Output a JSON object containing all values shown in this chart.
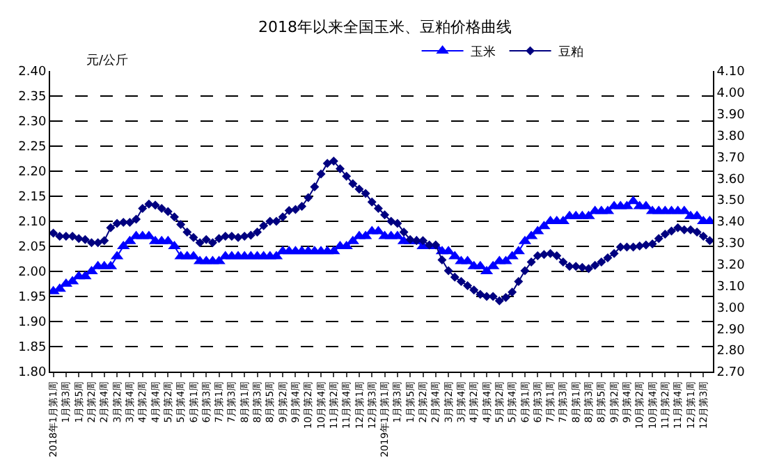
{
  "chart_data": {
    "type": "line",
    "title": "2018年以来全国玉米、豆粕价格曲线",
    "ylabel": "元/公斤",
    "categories": [
      "2018年1月第1周",
      null,
      "1月第3周",
      null,
      "1月第5周",
      null,
      "2月第2周",
      null,
      "2月第4周",
      null,
      "3月第2周",
      null,
      "3月第4周",
      null,
      "4月第2周",
      null,
      "4月第4周",
      null,
      "5月第2周",
      null,
      "5月第4周",
      null,
      "6月第1周",
      null,
      "6月第3周",
      null,
      "7月第1周",
      null,
      "7月第3周",
      null,
      "8月第1周",
      null,
      "8月第3周",
      null,
      "8月第5周",
      null,
      "9月第2周",
      null,
      "9月第4周",
      null,
      "10月第2周",
      null,
      "10月第4周",
      null,
      "11月第2周",
      null,
      "11月第4周",
      null,
      "12月第1周",
      null,
      "12月第3周",
      null,
      "2019年1月第1周",
      null,
      "1月第3周",
      null,
      "1月第5周",
      null,
      "2月第2周",
      null,
      "2月第4周",
      null,
      "3月第2周",
      null,
      "3月第4周",
      null,
      "4月第2周",
      null,
      "4月第4周",
      null,
      "5月第2周",
      null,
      "5月第4周",
      null,
      "6月第1周",
      null,
      "6月第3周",
      null,
      "7月第1周",
      null,
      "7月第3周",
      null,
      "8月第1周",
      null,
      "8月第3周",
      null,
      "8月第5周",
      null,
      "9月第2周",
      null,
      "9月第4周",
      null,
      "10月第2周",
      null,
      "10月第4周",
      null,
      "11月第2周",
      null,
      "11月第4周",
      null,
      "12月第1周",
      null,
      "12月第3周",
      null
    ],
    "series": [
      {
        "name": "玉米",
        "color": "#0000ff",
        "marker": "triangle",
        "values": [
          1.96,
          1.965,
          1.975,
          1.98,
          1.99,
          1.99,
          2.0,
          2.01,
          2.01,
          2.01,
          2.03,
          2.05,
          2.06,
          2.07,
          2.07,
          2.07,
          2.06,
          2.06,
          2.06,
          2.05,
          2.03,
          2.03,
          2.03,
          2.02,
          2.02,
          2.02,
          2.02,
          2.03,
          2.03,
          2.03,
          2.03,
          2.03,
          2.03,
          2.03,
          2.03,
          2.03,
          2.04,
          2.04,
          2.04,
          2.04,
          2.04,
          2.04,
          2.04,
          2.04,
          2.04,
          2.05,
          2.05,
          2.06,
          2.07,
          2.07,
          2.08,
          2.08,
          2.07,
          2.07,
          2.07,
          2.06,
          2.06,
          2.06,
          2.05,
          2.05,
          2.05,
          2.04,
          2.04,
          2.03,
          2.02,
          2.02,
          2.01,
          2.01,
          2.0,
          2.01,
          2.02,
          2.02,
          2.03,
          2.04,
          2.06,
          2.07,
          2.08,
          2.09,
          2.1,
          2.1,
          2.1,
          2.11,
          2.11,
          2.11,
          2.11,
          2.12,
          2.12,
          2.12,
          2.13,
          2.13,
          2.13,
          2.14,
          2.13,
          2.13,
          2.12,
          2.12,
          2.12,
          2.12,
          2.12,
          2.12,
          2.11,
          2.11,
          2.1,
          2.1
        ]
      },
      {
        "name": "豆粕",
        "color": "#000080",
        "marker": "diamond",
        "axis": "y2",
        "values": [
          3.345,
          3.33,
          3.33,
          3.33,
          3.32,
          3.315,
          3.3,
          3.3,
          3.31,
          3.37,
          3.39,
          3.395,
          3.395,
          3.41,
          3.46,
          3.48,
          3.475,
          3.46,
          3.445,
          3.42,
          3.385,
          3.35,
          3.325,
          3.3,
          3.315,
          3.3,
          3.32,
          3.33,
          3.33,
          3.325,
          3.33,
          3.335,
          3.35,
          3.38,
          3.4,
          3.4,
          3.42,
          3.45,
          3.455,
          3.47,
          3.51,
          3.56,
          3.62,
          3.67,
          3.68,
          3.645,
          3.61,
          3.575,
          3.55,
          3.53,
          3.49,
          3.46,
          3.43,
          3.4,
          3.39,
          3.35,
          3.315,
          3.31,
          3.31,
          3.29,
          3.29,
          3.22,
          3.17,
          3.14,
          3.12,
          3.1,
          3.08,
          3.06,
          3.05,
          3.05,
          3.03,
          3.045,
          3.07,
          3.12,
          3.17,
          3.21,
          3.24,
          3.245,
          3.25,
          3.24,
          3.21,
          3.19,
          3.19,
          3.185,
          3.18,
          3.195,
          3.21,
          3.23,
          3.25,
          3.28,
          3.28,
          3.28,
          3.285,
          3.29,
          3.295,
          3.32,
          3.34,
          3.355,
          3.37,
          3.36,
          3.36,
          3.35,
          3.33,
          3.31
        ]
      }
    ],
    "ylim": [
      1.8,
      2.4
    ],
    "yticks": [
      {
        "value": 1.8,
        "label": "1.80"
      },
      {
        "value": 1.85,
        "label": "1.85"
      },
      {
        "value": 1.9,
        "label": "1.90"
      },
      {
        "value": 1.95,
        "label": "1.95"
      },
      {
        "value": 2.0,
        "label": "2.00"
      },
      {
        "value": 2.05,
        "label": "2.05"
      },
      {
        "value": 2.1,
        "label": "2.10"
      },
      {
        "value": 2.15,
        "label": "2.15"
      },
      {
        "value": 2.2,
        "label": "2.20"
      },
      {
        "value": 2.25,
        "label": "2.25"
      },
      {
        "value": 2.3,
        "label": "2.30"
      },
      {
        "value": 2.35,
        "label": "2.35"
      },
      {
        "value": 2.4,
        "label": "2.40"
      }
    ],
    "y2lim": [
      2.7,
      4.1
    ],
    "y2ticks": [
      {
        "value": 2.7,
        "label": "2.70"
      },
      {
        "value": 2.8,
        "label": "2.80"
      },
      {
        "value": 2.9,
        "label": "2.90"
      },
      {
        "value": 3.0,
        "label": "3.00"
      },
      {
        "value": 3.1,
        "label": "3.10"
      },
      {
        "value": 3.2,
        "label": "3.20"
      },
      {
        "value": 3.3,
        "label": "3.30"
      },
      {
        "value": 3.4,
        "label": "3.40"
      },
      {
        "value": 3.5,
        "label": "3.50"
      },
      {
        "value": 3.6,
        "label": "3.60"
      },
      {
        "value": 3.7,
        "label": "3.70"
      },
      {
        "value": 3.8,
        "label": "3.80"
      },
      {
        "value": 3.9,
        "label": "3.90"
      },
      {
        "value": 4.0,
        "label": "4.00"
      },
      {
        "value": 4.1,
        "label": "4.10"
      }
    ],
    "grid": "y",
    "legend": "top",
    "line_style": "solid"
  }
}
